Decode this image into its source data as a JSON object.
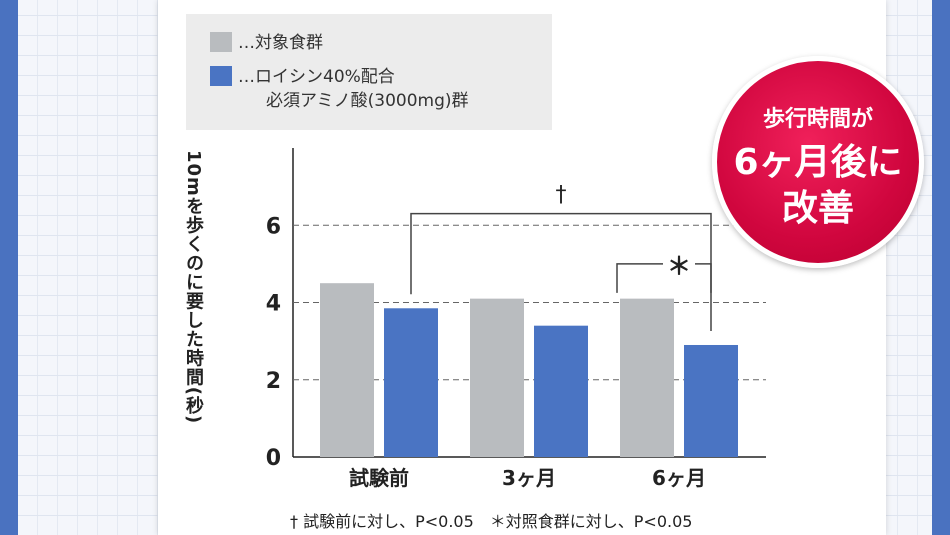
{
  "legend": [
    {
      "label": "…対象食群",
      "color": "#b9bcbf"
    },
    {
      "label": "…ロイシン40%配合",
      "label2": "必須アミノ酸(3000mg)群",
      "color": "#4a74c3"
    }
  ],
  "badge": {
    "line1": "歩行時間が",
    "line2": "6ヶ月後に",
    "line3": "改善"
  },
  "footnote": "† 試験前に対し、P<0.05　＊対照食群に対し、P<0.05",
  "chart_data": {
    "type": "bar",
    "ylabel": "10mを歩くのに要した時間(秒)",
    "categories": [
      "試験前",
      "3ヶ月",
      "6ヶ月"
    ],
    "series": [
      {
        "name": "対象食群",
        "color": "#b9bcbf",
        "values": [
          4.5,
          4.1,
          4.1
        ]
      },
      {
        "name": "ロイシン40%配合必須アミノ酸(3000mg)群",
        "color": "#4a74c3",
        "values": [
          3.85,
          3.4,
          2.9
        ]
      }
    ],
    "ylim": [
      0,
      8
    ],
    "yticks": [
      0,
      2,
      4,
      6
    ],
    "grid": "dashed",
    "annotations": [
      {
        "symbol": "†",
        "from": {
          "category": 0,
          "series": 1
        },
        "to": {
          "category": 2,
          "series": 1
        }
      },
      {
        "symbol": "＊",
        "from": {
          "category": 2,
          "series": 0
        },
        "to": {
          "category": 2,
          "series": 1
        }
      }
    ]
  }
}
